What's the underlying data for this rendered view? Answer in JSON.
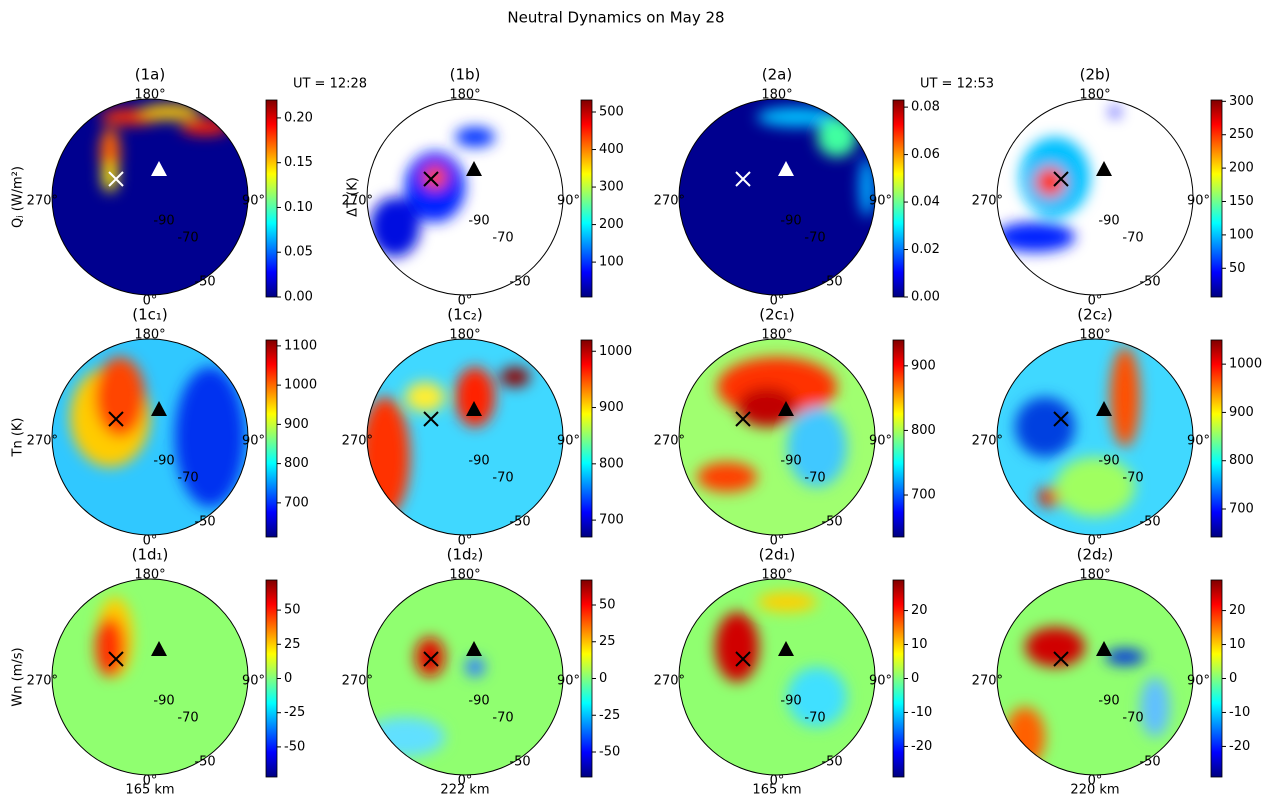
{
  "title": "Neutral Dynamics on May 28",
  "ut_labels": [
    "UT = 12:28",
    "UT = 12:53"
  ],
  "altitudes": [
    "165 km",
    "222 km",
    "165 km",
    "220 km"
  ],
  "polar_labels": {
    "lon": [
      "180°",
      "270°",
      "90°",
      "0°"
    ],
    "lat": [
      "-90",
      "-70",
      "-50"
    ]
  },
  "chart_data": [
    {
      "type": "polar-map",
      "title": "(1a)",
      "ylabel": "Qⱼ (W/m²)",
      "clim": [
        0,
        0.22
      ],
      "cticks": [
        {
          "value": 0,
          "label": "0.00"
        },
        0.05,
        {
          "value": 0.1,
          "label": "0.10"
        },
        0.15,
        {
          "value": 0.2,
          "label": "0.20"
        }
      ]
    },
    {
      "type": "polar-map",
      "title": "(1b)",
      "ylabel": "ΔT (K)",
      "clim": [
        7,
        532
      ],
      "cticks": [
        100,
        200,
        300,
        400,
        500
      ]
    },
    {
      "type": "polar-map",
      "title": "(2a)",
      "clim": [
        0,
        0.083
      ],
      "cticks": [
        {
          "value": 0,
          "label": "0.00"
        },
        0.02,
        0.04,
        0.06,
        0.08
      ]
    },
    {
      "type": "polar-map",
      "title": "(2b)",
      "clim": [
        7,
        302
      ],
      "cticks": [
        50,
        100,
        150,
        200,
        250,
        300
      ]
    },
    {
      "type": "polar-map",
      "title": "(1c₁)",
      "ylabel": "Tn (K)",
      "clim": [
        613,
        1115
      ],
      "cticks": [
        700,
        800,
        900,
        1000,
        1100
      ]
    },
    {
      "type": "polar-map",
      "title": "(1c₂)",
      "clim": [
        670,
        1020
      ],
      "cticks": [
        700,
        800,
        900,
        1000
      ]
    },
    {
      "type": "polar-map",
      "title": "(2c₁)",
      "clim": [
        635,
        940
      ],
      "cticks": [
        700,
        800,
        900
      ]
    },
    {
      "type": "polar-map",
      "title": "(2c₂)",
      "clim": [
        642,
        1050
      ],
      "cticks": [
        700,
        800,
        900,
        1000
      ]
    },
    {
      "type": "polar-map",
      "title": "(1d₁)",
      "ylabel": "Wn (m/s)",
      "clim": [
        -72,
        72
      ],
      "cticks": [
        -50,
        -25,
        0,
        25,
        50
      ]
    },
    {
      "type": "polar-map",
      "title": "(1d₂)",
      "clim": [
        -67,
        67
      ],
      "cticks": [
        -50,
        -25,
        0,
        25,
        50
      ]
    },
    {
      "type": "polar-map",
      "title": "(2d₁)",
      "clim": [
        -29,
        29
      ],
      "cticks": [
        -20,
        -10,
        0,
        10,
        20
      ]
    },
    {
      "type": "polar-map",
      "title": "(2d₂)",
      "clim": [
        -29,
        29
      ],
      "cticks": [
        -20,
        -10,
        0,
        10,
        20
      ]
    }
  ]
}
